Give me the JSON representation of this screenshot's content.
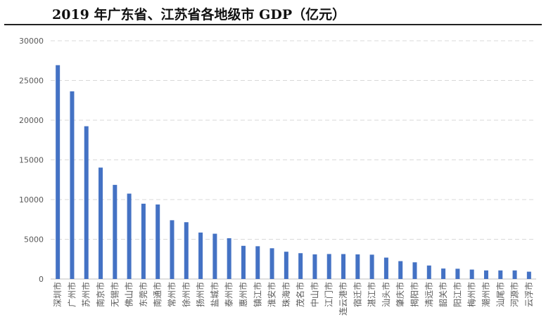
{
  "title": "2019 年广东省、江苏省各地级市 GDP（亿元）",
  "chart_data": {
    "type": "bar",
    "title": "2019 年广东省、江苏省各地级市 GDP（亿元）",
    "xlabel": "",
    "ylabel": "",
    "ylim": [
      0,
      30000
    ],
    "yticks": [
      "0",
      "5000",
      "10000",
      "15000",
      "20000",
      "25000",
      "30000"
    ],
    "grid": true,
    "legend": "none",
    "colors": {
      "bar": "#4472c4",
      "grid": "#d9d9d9",
      "axis": "#bfbfbf",
      "tick": "#595959"
    },
    "categories": [
      "深圳市",
      "广州市",
      "苏州市",
      "南京市",
      "无锡市",
      "佛山市",
      "东莞市",
      "南通市",
      "常州市",
      "徐州市",
      "扬州市",
      "盐城市",
      "泰州市",
      "惠州市",
      "镇江市",
      "淮安市",
      "珠海市",
      "茂名市",
      "中山市",
      "江门市",
      "连云港市",
      "宿迁市",
      "湛江市",
      "汕头市",
      "肇庆市",
      "揭阳市",
      "清远市",
      "韶关市",
      "阳江市",
      "梅州市",
      "潮州市",
      "汕尾市",
      "河源市",
      "云浮市"
    ],
    "values": [
      26927,
      23629,
      19236,
      14030,
      11852,
      10751,
      9482,
      9383,
      7401,
      7151,
      5850,
      5702,
      5133,
      4177,
      4127,
      3871,
      3436,
      3252,
      3101,
      3146,
      3139,
      3099,
      3065,
      2694,
      2249,
      2102,
      1698,
      1318,
      1292,
      1187,
      1080,
      1080,
      1080,
      921
    ]
  }
}
